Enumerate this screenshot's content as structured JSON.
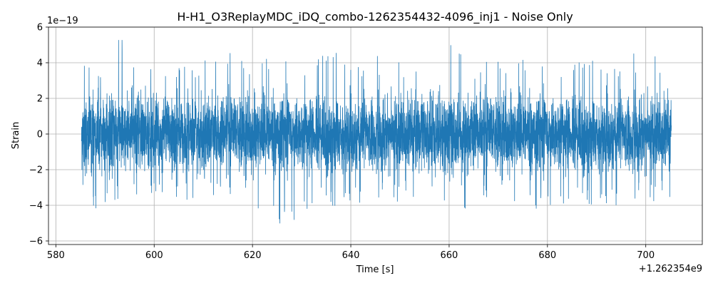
{
  "chart_data": {
    "type": "line",
    "title": "H-H1_O3ReplayMDC_iDQ_combo-1262354432-4096_inj1 - Noise Only",
    "xlabel": "Time [s]",
    "ylabel": "Strain",
    "x_offset_label": "+1.262354e9",
    "y_scale_label": "1e−19",
    "xlim": [
      578.5,
      711.5
    ],
    "ylim": [
      -6.2,
      6.0
    ],
    "x_ticks": [
      580,
      600,
      620,
      640,
      660,
      680,
      700
    ],
    "x_tick_labels": [
      "580",
      "600",
      "620",
      "640",
      "660",
      "680",
      "700"
    ],
    "y_ticks": [
      -6,
      -4,
      -2,
      0,
      2,
      4,
      6
    ],
    "y_tick_labels": [
      "−6",
      "−4",
      "−2",
      "0",
      "2",
      "4",
      "6"
    ],
    "grid": true,
    "legend": "none",
    "line_color": "#1f77b4",
    "series": [
      {
        "x_range": [
          585.2,
          705.2
        ],
        "envelope_x": [
          585.2,
          586,
          590,
          593,
          600,
          610,
          614,
          620,
          628,
          630,
          636,
          640,
          650,
          658,
          660,
          665,
          670,
          680,
          690,
          700,
          705.2
        ],
        "envelope_max": [
          3.8,
          5.0,
          4.0,
          5.5,
          3.9,
          4.2,
          5.0,
          4.3,
          4.6,
          4.3,
          4.8,
          4.6,
          4.2,
          4.4,
          5.5,
          4.1,
          4.5,
          4.2,
          4.3,
          4.6,
          4.5
        ],
        "envelope_min": [
          -3.1,
          -4.1,
          -4.3,
          -3.8,
          -3.5,
          -3.8,
          -3.2,
          -4.1,
          -5.6,
          -4.8,
          -4.3,
          -3.9,
          -4.0,
          -3.7,
          -5.4,
          -3.6,
          -3.6,
          -4.5,
          -4.1,
          -4.0,
          -3.9
        ],
        "envelope_x_note": "",
        "typical_amplitude": 1.4,
        "samples": 6000
      }
    ]
  }
}
